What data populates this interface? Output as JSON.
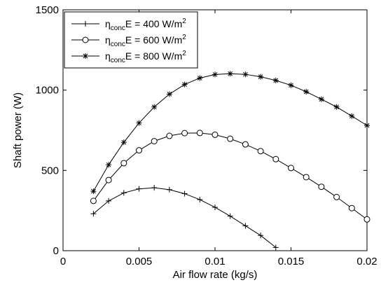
{
  "chart_data": {
    "type": "line",
    "xlabel": "Air flow rate (kg/s)",
    "ylabel": "Shaft power (W)",
    "xlim": [
      0,
      0.02
    ],
    "ylim": [
      0,
      1500
    ],
    "xticks": [
      0,
      0.005,
      0.01,
      0.015,
      0.02
    ],
    "xtick_labels": [
      "0",
      "0.005",
      "0.01",
      "0.015",
      "0.02"
    ],
    "yticks": [
      0,
      500,
      1000,
      1500
    ],
    "ytick_labels": [
      "0",
      "500",
      "1000",
      "1500"
    ],
    "grid": false,
    "legend_position": "top-left",
    "series": [
      {
        "name": "η_conc E = 400 W/m²",
        "legend": {
          "symbol": "η",
          "sub": "conc",
          "mid": "E = 400 W/m",
          "sup": "2"
        },
        "marker": "plus",
        "x": [
          0.002,
          0.003,
          0.004,
          0.005,
          0.006,
          0.007,
          0.008,
          0.009,
          0.01,
          0.011,
          0.012,
          0.013,
          0.014
        ],
        "y": [
          230,
          310,
          360,
          385,
          392,
          380,
          355,
          318,
          270,
          215,
          155,
          95,
          20
        ]
      },
      {
        "name": "η_conc E = 600 W/m²",
        "legend": {
          "symbol": "η",
          "sub": "conc",
          "mid": "E = 600 W/m",
          "sup": "2"
        },
        "marker": "circle",
        "x": [
          0.002,
          0.003,
          0.004,
          0.005,
          0.006,
          0.007,
          0.008,
          0.009,
          0.01,
          0.011,
          0.012,
          0.013,
          0.014,
          0.015,
          0.016,
          0.017,
          0.018,
          0.019,
          0.02
        ],
        "y": [
          310,
          440,
          545,
          625,
          682,
          715,
          732,
          733,
          722,
          697,
          662,
          620,
          570,
          515,
          458,
          398,
          334,
          265,
          195
        ]
      },
      {
        "name": "η_conc E = 800 W/m²",
        "legend": {
          "symbol": "η",
          "sub": "conc",
          "mid": "E = 800 W/m",
          "sup": "2"
        },
        "marker": "star",
        "x": [
          0.002,
          0.003,
          0.004,
          0.005,
          0.006,
          0.007,
          0.008,
          0.009,
          0.01,
          0.011,
          0.012,
          0.013,
          0.014,
          0.015,
          0.016,
          0.017,
          0.018,
          0.019,
          0.02
        ],
        "y": [
          370,
          535,
          675,
          795,
          895,
          975,
          1035,
          1075,
          1097,
          1102,
          1098,
          1083,
          1060,
          1030,
          990,
          943,
          895,
          838,
          780
        ]
      }
    ]
  },
  "colors": {
    "line": "#000000",
    "background": "#ffffff"
  }
}
